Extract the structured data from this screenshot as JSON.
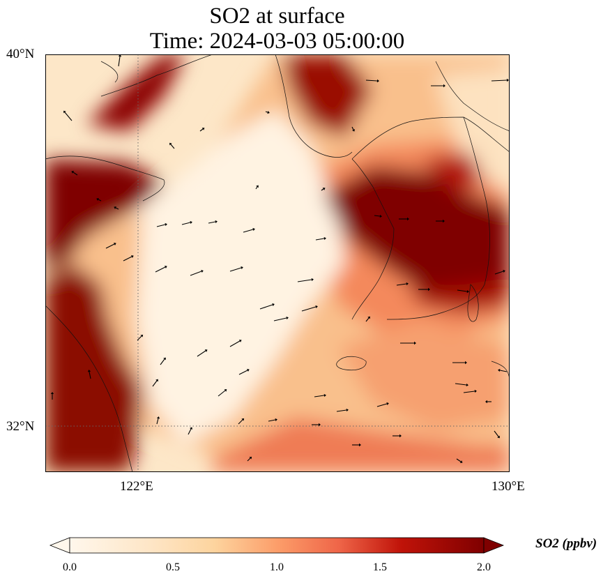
{
  "title": {
    "line1": "SO2 at surface",
    "line2": "Time: 2024-03-03 05:00:00"
  },
  "map": {
    "variable": "SO2",
    "units": "ppbv",
    "extent": {
      "lon_min": 120.5,
      "lon_max": 130,
      "lat_min": 31.0,
      "lat_max": 40
    },
    "lat_ticks": [
      {
        "value": 40,
        "label": "40°N"
      },
      {
        "value": 32,
        "label": "32°N"
      }
    ],
    "lon_ticks": [
      {
        "value": 122,
        "label": "122°E"
      },
      {
        "value": 130,
        "label": "130°E"
      }
    ],
    "gridlines": {
      "lat": [
        32
      ],
      "lon": [
        122
      ],
      "style": "dotted"
    },
    "colormap": "OrRd",
    "colors": [
      "#fff7ec",
      "#fdd49e",
      "#fc8d59",
      "#d7301f",
      "#7f0000"
    ]
  },
  "colorbar": {
    "label": "SO2 (ppbv)",
    "min": 0.0,
    "max": 2.0,
    "ticks": [
      "0.0",
      "0.5",
      "1.0",
      "1.5",
      "2.0"
    ],
    "extend": "both"
  }
}
